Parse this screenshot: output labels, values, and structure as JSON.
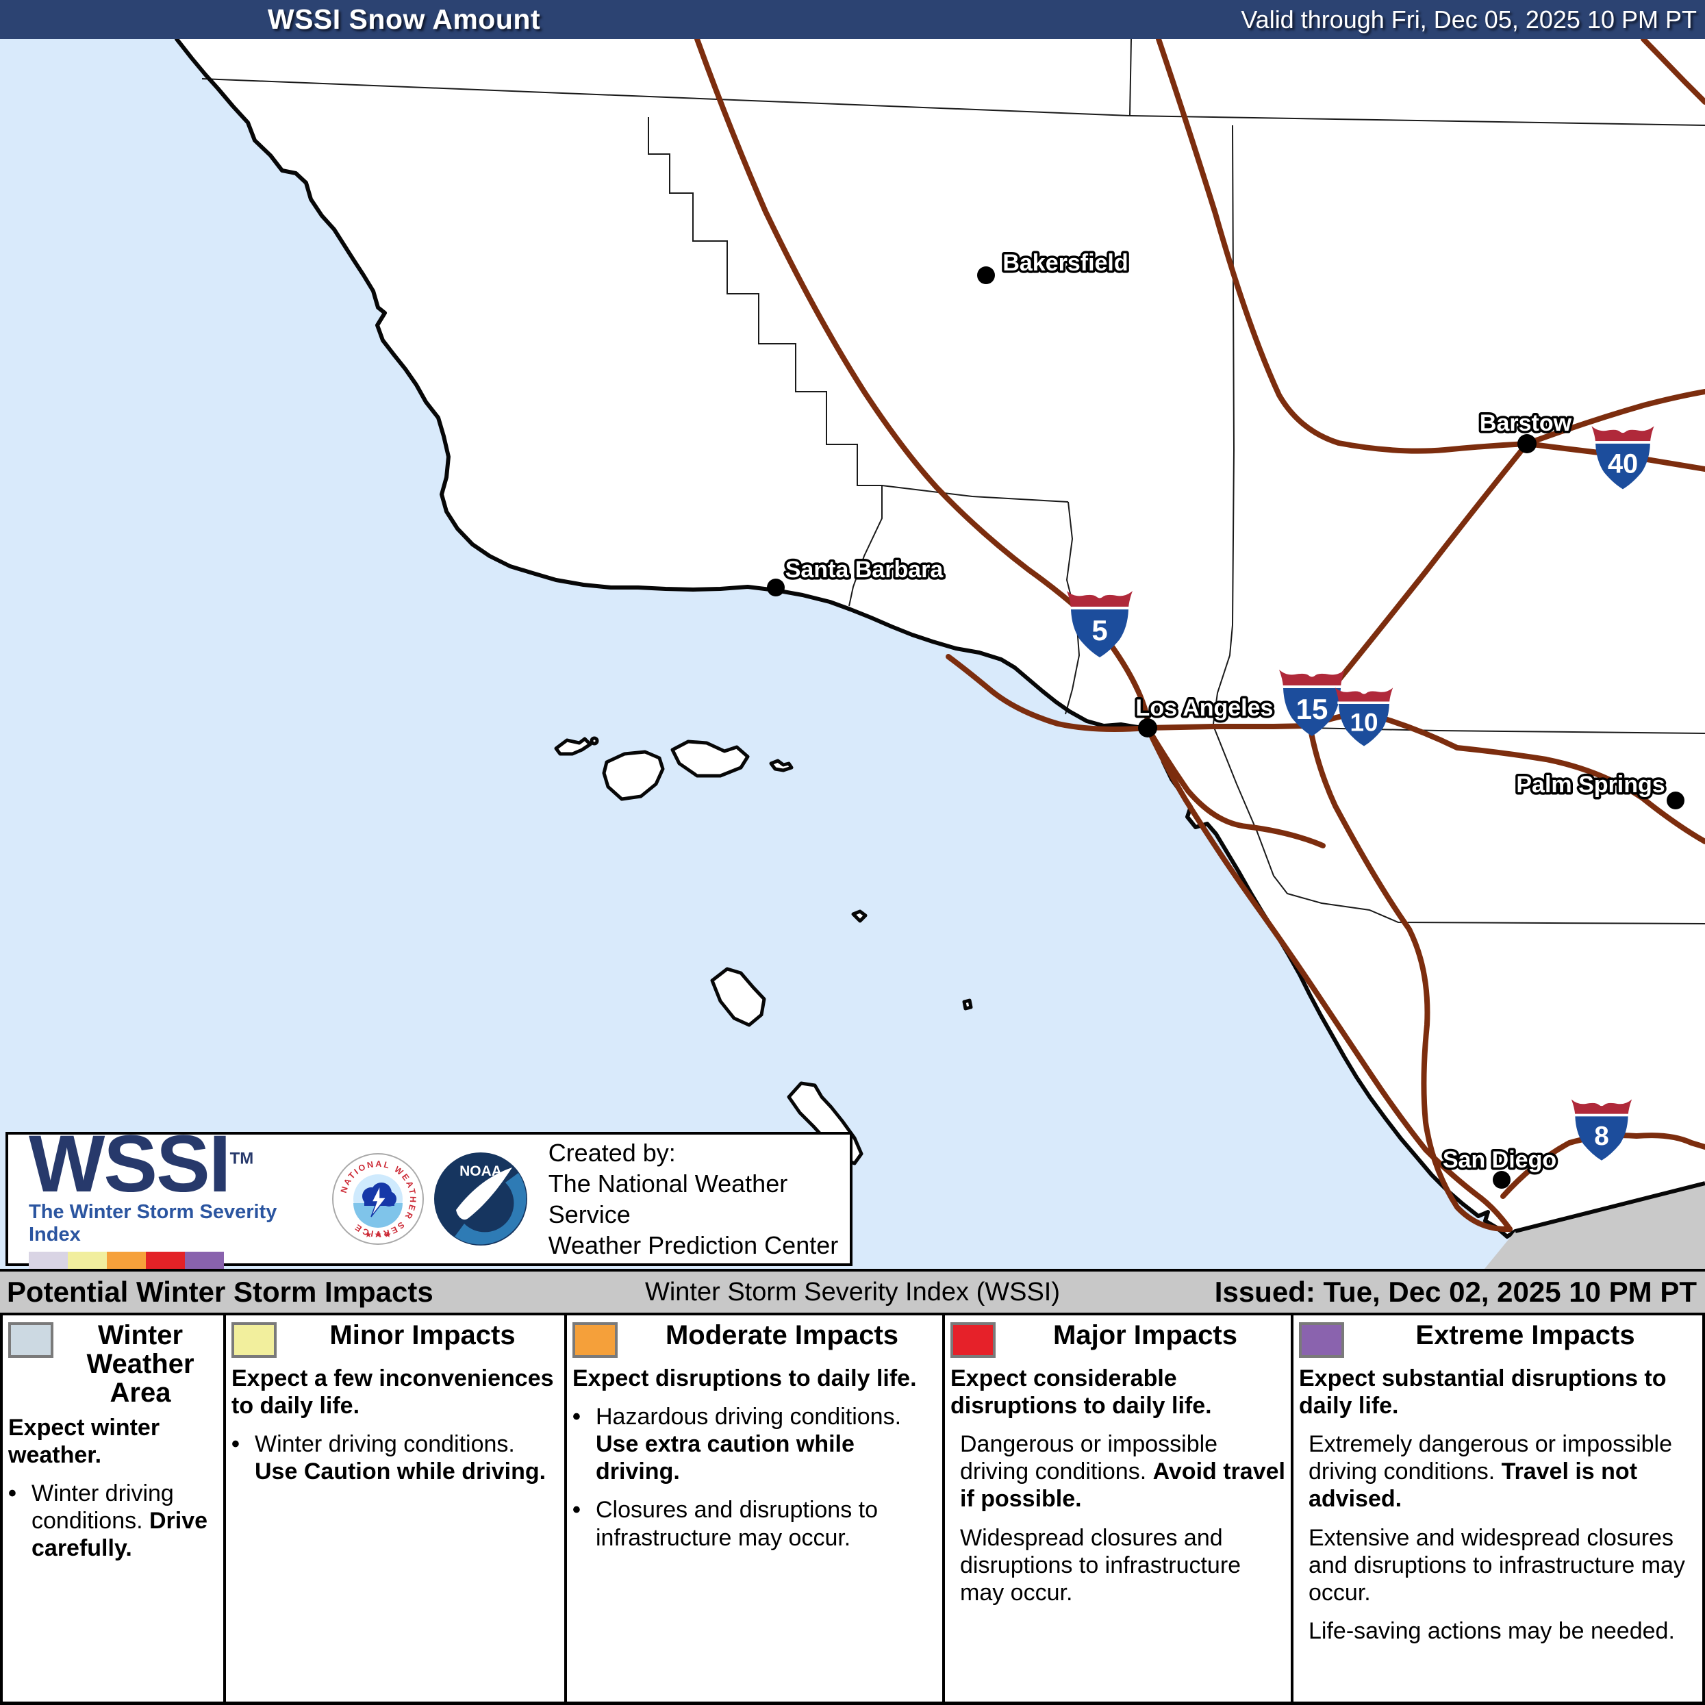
{
  "header": {
    "title": "WSSI Snow Amount",
    "valid": "Valid through Fri, Dec 05, 2025 10 PM PT",
    "bg": "#2c4372"
  },
  "map": {
    "colors": {
      "ocean": "#d9eafb",
      "land": "#ffffff",
      "road": "#7c2d0e",
      "outside_region": "#c9c9c9",
      "shield_red": "#b0293a",
      "shield_blue": "#1c4d9c"
    },
    "cities": [
      {
        "name": "Bakersfield"
      },
      {
        "name": "Santa Barbara"
      },
      {
        "name": "Los Angeles"
      },
      {
        "name": "Barstow"
      },
      {
        "name": "Palm Springs"
      },
      {
        "name": "San Diego"
      }
    ],
    "shields": [
      {
        "num": "5"
      },
      {
        "num": "15"
      },
      {
        "num": "10"
      },
      {
        "num": "40"
      },
      {
        "num": "8"
      }
    ]
  },
  "logo_box": {
    "wssi": "WSSI",
    "tm": "TM",
    "subtitle": "The Winter Storm Severity Index",
    "created_by": "Created by:",
    "line1": "The National Weather Service",
    "line2": "Weather Prediction Center",
    "nws_ring": "NATIONAL WEATHER SERVICE",
    "nws_stars": "★ ★ ★",
    "noaa": "NOAA",
    "swatches": [
      "#d9d4e4",
      "#f1ee9e",
      "#f6a13b",
      "#e32227",
      "#8962ad"
    ]
  },
  "bar": {
    "left": "Potential Winter Storm Impacts",
    "center": "Winter Storm Severity Index (WSSI)",
    "right": "Issued: Tue, Dec 02, 2025 10 PM PT"
  },
  "legend": {
    "columns": [
      {
        "swatch": "#ccd9e2",
        "title": "Winter Weather Area",
        "intro": "Expect winter weather.",
        "bullet": "dot",
        "items": [
          {
            "pre": "Winter driving conditions. ",
            "bold": "Drive carefully."
          }
        ]
      },
      {
        "swatch": "#f2ef9d",
        "title": "Minor Impacts",
        "intro": "Expect a few inconveniences to daily life.",
        "bullet": "dot",
        "items": [
          {
            "pre": "Winter driving conditions. ",
            "bold": "Use Caution while driving."
          }
        ]
      },
      {
        "swatch": "#f5a03a",
        "title": "Moderate Impacts",
        "intro": "Expect disruptions to daily life.",
        "bullet": "dot",
        "items": [
          {
            "pre": "Hazardous driving conditions. ",
            "bold": "Use extra caution while driving."
          },
          {
            "pre": "Closures and disruptions to infrastructure may occur.",
            "bold": ""
          }
        ]
      },
      {
        "swatch": "#e62129",
        "title": "Major Impacts",
        "intro": "Expect considerable disruptions to daily life.",
        "bullet": "none",
        "items": [
          {
            "pre": "Dangerous or impossible driving conditions. ",
            "bold": "Avoid travel if possible."
          },
          {
            "pre": "Widespread closures and disruptions to infrastructure may occur.",
            "bold": ""
          }
        ]
      },
      {
        "swatch": "#8a63ae",
        "title": "Extreme Impacts",
        "intro": "Expect substantial disruptions to daily life.",
        "bullet": "none",
        "items": [
          {
            "pre": "Extremely dangerous or impossible driving conditions. ",
            "bold": "Travel is not advised."
          },
          {
            "pre": "Extensive and widespread closures and disruptions to infrastructure may occur.",
            "bold": ""
          },
          {
            "pre": "Life-saving actions may be needed.",
            "bold": ""
          }
        ]
      }
    ]
  }
}
